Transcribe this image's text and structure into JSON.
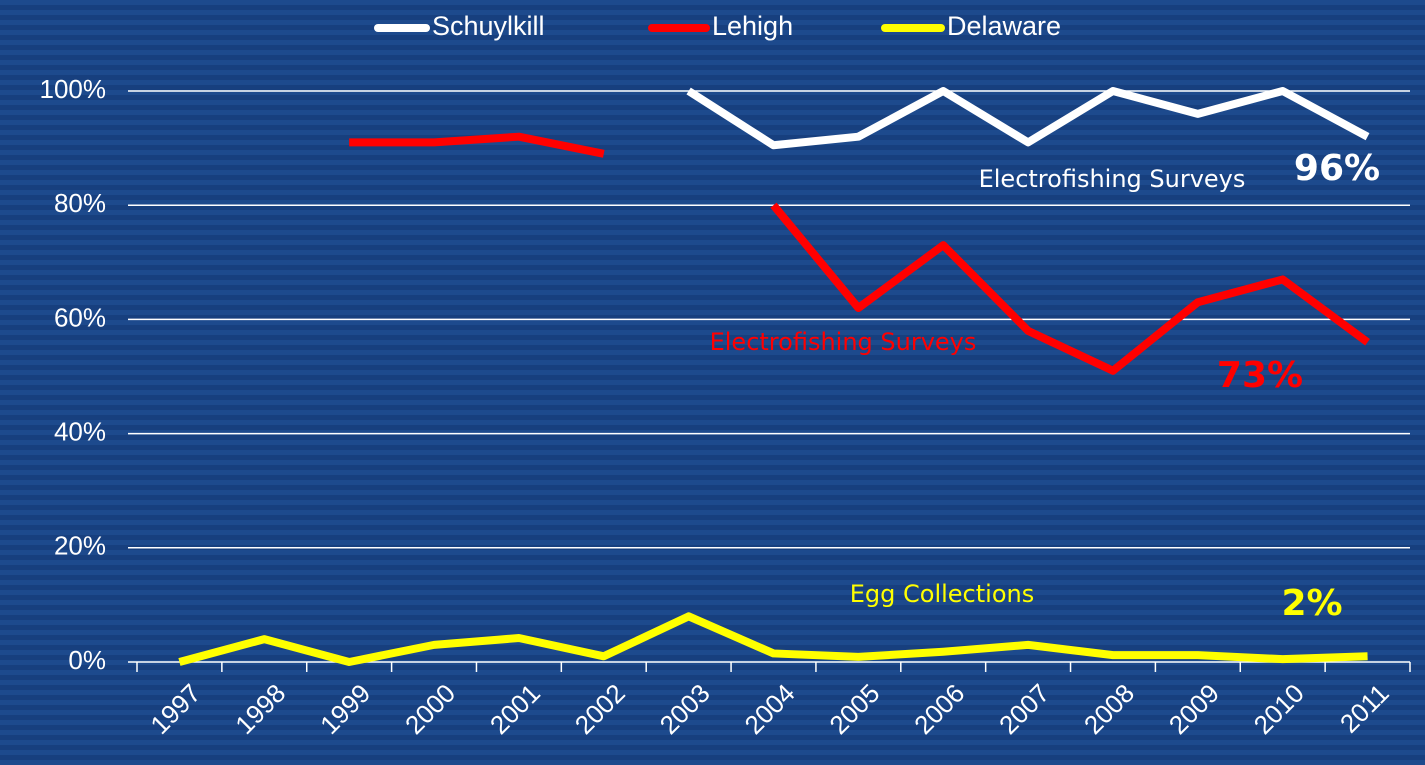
{
  "chart_data": {
    "type": "line",
    "categories": [
      "1997",
      "1998",
      "1999",
      "2000",
      "2001",
      "2002",
      "2003",
      "2004",
      "2005",
      "2006",
      "2007",
      "2008",
      "2009",
      "2010",
      "2011"
    ],
    "series": [
      {
        "name": "Schuylkill",
        "color": "#ffffff",
        "values": [
          null,
          null,
          null,
          null,
          null,
          null,
          100,
          90.5,
          92,
          100,
          91,
          100,
          96,
          100,
          92
        ]
      },
      {
        "name": "Lehigh",
        "color": "#ff0000",
        "values": [
          null,
          null,
          91,
          91,
          92,
          89,
          null,
          80,
          62,
          73,
          58,
          51,
          63,
          67,
          56
        ]
      },
      {
        "name": "Delaware",
        "color": "#ffff00",
        "values": [
          0,
          4,
          0,
          3,
          4.2,
          1,
          8,
          1.5,
          0.9,
          1.8,
          3,
          1.2,
          1.2,
          0.5,
          1
        ]
      }
    ],
    "ylim": [
      0,
      100
    ],
    "yticks": [
      {
        "value": 0,
        "label": "0%"
      },
      {
        "value": 20,
        "label": "20%"
      },
      {
        "value": 40,
        "label": "40%"
      },
      {
        "value": 60,
        "label": "60%"
      },
      {
        "value": 80,
        "label": "80%"
      },
      {
        "value": 100,
        "label": "100%"
      }
    ],
    "grid": true,
    "legend": "top",
    "annotations": [
      {
        "text": "Electrofishing Surveys",
        "color": "#ffffff"
      },
      {
        "text": "96%",
        "color": "#ffffff"
      },
      {
        "text": "Electrofishing Surveys",
        "color": "#ff0000"
      },
      {
        "text": "73%",
        "color": "#ff0000"
      },
      {
        "text": "Egg Collections",
        "color": "#ffff00"
      },
      {
        "text": "2%",
        "color": "#ffff00"
      }
    ]
  }
}
